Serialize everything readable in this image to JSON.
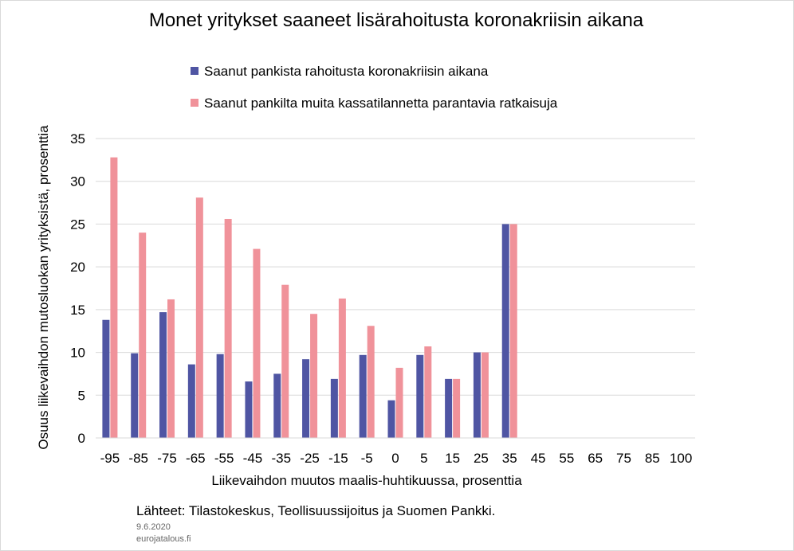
{
  "chart_data": {
    "type": "bar",
    "title": "Monet yritykset saaneet lisärahoitusta koronakriisin aikana",
    "xlabel": "Liikevaihdon muutos maalis-huhtikuussa,  prosenttia",
    "ylabel": "Osuus liikevaihdon mutosluokan yrityksistä, prosenttia",
    "categories": [
      "-95",
      "-85",
      "-75",
      "-65",
      "-55",
      "-45",
      "-35",
      "-25",
      "-15",
      "-5",
      "0",
      "5",
      "15",
      "25",
      "35",
      "45",
      "55",
      "65",
      "75",
      "85",
      "100"
    ],
    "ylim": [
      0,
      35
    ],
    "yticks": [
      0,
      5,
      10,
      15,
      20,
      25,
      30,
      35
    ],
    "grid": true,
    "legend_position": "top",
    "series": [
      {
        "name": "Saanut pankista rahoitusta koronakriisin aikana",
        "color": "#4f55a3",
        "values": [
          13.8,
          9.9,
          14.7,
          8.6,
          9.8,
          6.6,
          7.5,
          9.2,
          6.9,
          9.7,
          4.4,
          9.7,
          6.9,
          10.0,
          25.0,
          null,
          null,
          null,
          null,
          null,
          null
        ]
      },
      {
        "name": "Saanut pankilta muita kassatilannetta parantavia ratkaisuja",
        "color": "#f0929a",
        "values": [
          32.8,
          24.0,
          16.2,
          28.1,
          25.6,
          22.1,
          17.9,
          14.5,
          16.3,
          13.1,
          8.2,
          10.7,
          6.9,
          10.0,
          25.0,
          null,
          null,
          null,
          null,
          null,
          null
        ]
      }
    ],
    "source": "Lähteet: Tilastokeskus, Teollisuussijoitus  ja Suomen Pankki.",
    "date": "9.6.2020",
    "site": "eurojatalous.fi"
  }
}
